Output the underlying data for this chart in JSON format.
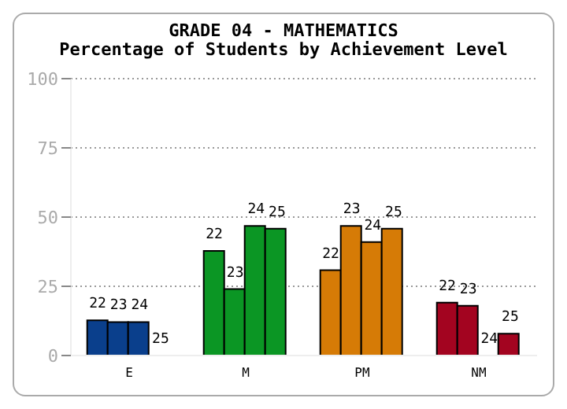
{
  "chart_data": {
    "type": "bar",
    "title": "GRADE 04 - MATHEMATICS",
    "subtitle": "Percentage of Students by Achievement Level",
    "categories": [
      "E",
      "M",
      "PM",
      "NM"
    ],
    "series": [
      {
        "name": "22",
        "colors": [
          "#0a3f8c",
          "#0b9624",
          "#d67b06",
          "#a30420"
        ],
        "values": [
          12.7,
          37.8,
          30.8,
          19.1
        ]
      },
      {
        "name": "23",
        "colors": [
          "#0a3f8c",
          "#0b9624",
          "#d67b06",
          "#a30420"
        ],
        "values": [
          12.1,
          24,
          46.8,
          18
        ]
      },
      {
        "name": "24",
        "colors": [
          "#0a3f8c",
          "#0b9624",
          "#d67b06",
          "#a30420"
        ],
        "values": [
          12.1,
          46.8,
          41,
          0
        ]
      },
      {
        "name": "25",
        "colors": [
          "#0a3f8c",
          "#0b9624",
          "#d67b06",
          "#a30420"
        ],
        "values": [
          0,
          45.8,
          45.8,
          7.9
        ]
      }
    ],
    "ylim": [
      0,
      100
    ],
    "yticks": [
      0,
      25,
      50,
      75,
      100
    ],
    "grid": "y"
  }
}
